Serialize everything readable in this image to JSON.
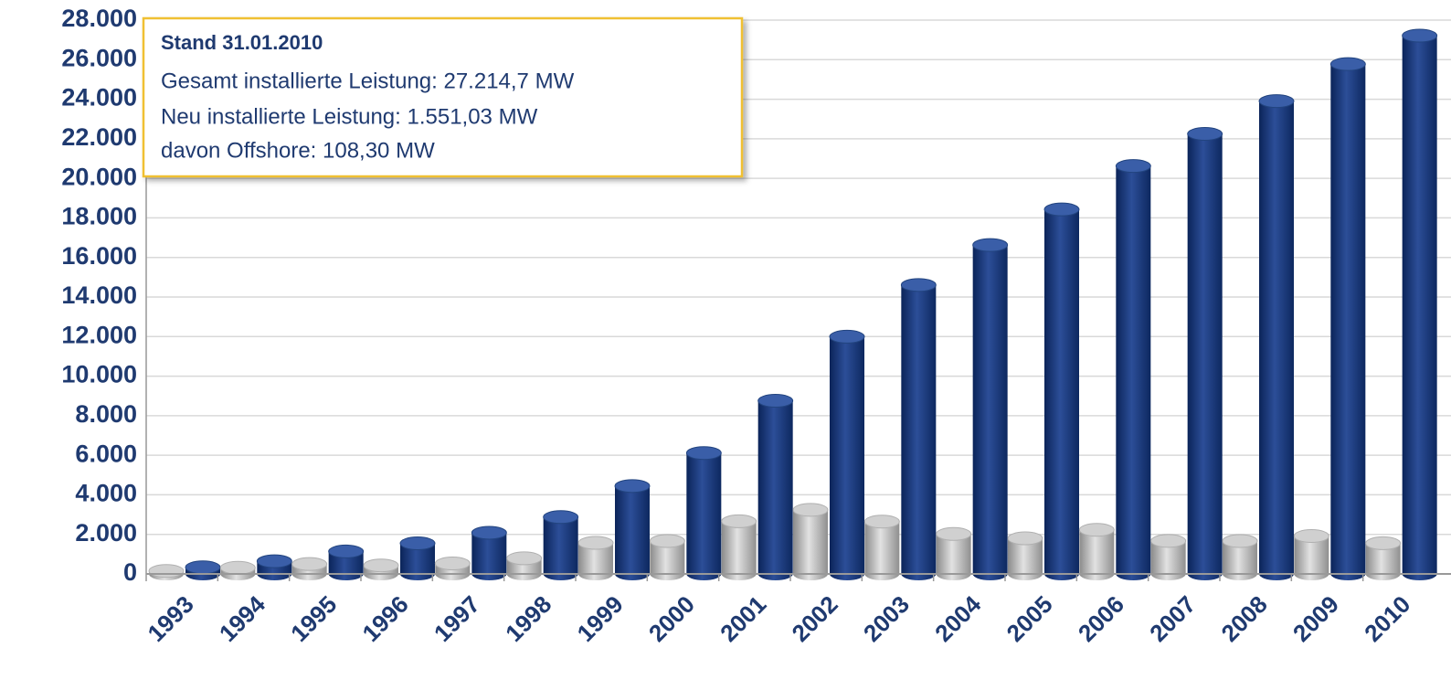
{
  "chart_data": {
    "type": "bar",
    "categories": [
      "1993",
      "1994",
      "1995",
      "1996",
      "1997",
      "1998",
      "1999",
      "2000",
      "2001",
      "2002",
      "2003",
      "2004",
      "2005",
      "2006",
      "2007",
      "2008",
      "2009",
      "2010"
    ],
    "series": [
      {
        "color": "#a6a6a6",
        "values": [
          150,
          310,
          500,
          430,
          530,
          790,
          1570,
          1665,
          2660,
          3240,
          2645,
          2020,
          1800,
          2230,
          1670,
          1665,
          1917,
          1551
        ]
      },
      {
        "color": "#14357a",
        "values": [
          334,
          643,
          1137,
          1546,
          2082,
          2875,
          4444,
          6112,
          8754,
          11994,
          14609,
          16629,
          18428,
          20622,
          22247,
          23903,
          25777,
          27215
        ]
      }
    ],
    "ylim": [
      0,
      28000
    ],
    "yticks": [
      0,
      {
        "value": 2000,
        "label": "2.000"
      },
      {
        "value": 4000,
        "label": "4.000"
      },
      {
        "value": 6000,
        "label": "6.000"
      },
      {
        "value": 8000,
        "label": "8.000"
      },
      {
        "value": 10000,
        "label": "10.000"
      },
      {
        "value": 12000,
        "label": "12.000"
      },
      {
        "value": 14000,
        "label": "14.000"
      },
      {
        "value": 16000,
        "label": "16.000"
      },
      {
        "value": 18000,
        "label": "18.000"
      },
      {
        "value": 20000,
        "label": "20.000"
      },
      {
        "value": 22000,
        "label": "22.000"
      },
      {
        "value": 24000,
        "label": "24.000"
      },
      {
        "value": 26000,
        "label": "26.000"
      },
      {
        "value": 28000,
        "label": "28.000"
      }
    ],
    "grid": true,
    "annotation": [
      "Stand 31.01.2010",
      "Gesamt installierte Leistung: 27.214,7 MW",
      "Neu installierte Leistung: 1.551,03 MW",
      "davon Offshore: 108,30 MW"
    ]
  }
}
